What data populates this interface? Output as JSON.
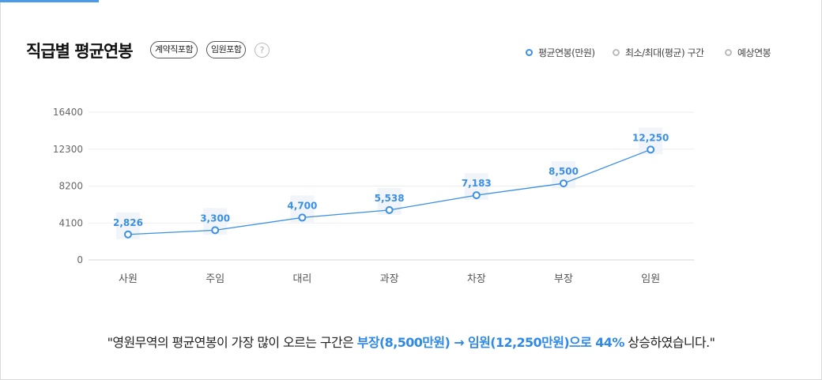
{
  "header": {
    "title": "직급별 평균연봉",
    "tags": [
      "계약직포함",
      "임원포함"
    ],
    "help_glyph": "?"
  },
  "legend": [
    {
      "label": "평균연봉(만원)",
      "color": "#3b8fe4"
    },
    {
      "label": "최소/최대(평균) 구간",
      "color": "#bbbbbb"
    },
    {
      "label": "예상연봉",
      "color": "#bbbbbb"
    }
  ],
  "chart_data": {
    "type": "line",
    "categories": [
      "사원",
      "주임",
      "대리",
      "과장",
      "차장",
      "부장",
      "임원"
    ],
    "series": [
      {
        "name": "평균연봉(만원)",
        "values": [
          2826,
          3300,
          4700,
          5538,
          7183,
          8500,
          12250
        ],
        "color": "#3b8fe4"
      }
    ],
    "data_labels": [
      "2,826",
      "3,300",
      "4,700",
      "5,538",
      "7,183",
      "8,500",
      "12,250"
    ],
    "yticks": [
      "0",
      "4100",
      "8200",
      "12300",
      "16400"
    ],
    "ylim": [
      0,
      16400
    ],
    "grid": true
  },
  "summary": {
    "prefix": "\"영원무역의 평균연봉이 가장 많이 오르는 구간은 ",
    "highlight": "부장(8,500만원) → 임원(12,250만원)으로 44%",
    "suffix": " 상승하였습니다.\""
  }
}
